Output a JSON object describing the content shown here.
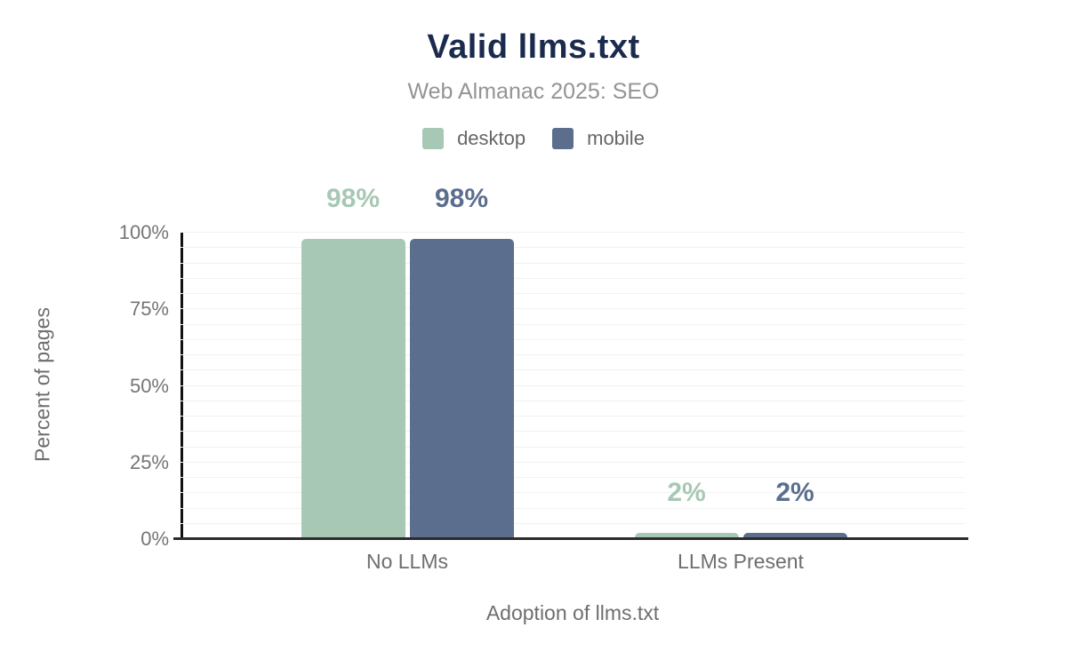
{
  "header": {
    "title": "Valid llms.txt",
    "subtitle": "Web Almanac 2025: SEO"
  },
  "colors": {
    "title_navy": "#1b2b4e",
    "subtitle_gray": "#949494",
    "axis_label_gray": "#6e6e6e",
    "tick_gray": "#757575",
    "gridline": "#f2f2f2",
    "axis_line": "#2b2b2b",
    "desktop_green": "#a7c8b4",
    "mobile_blue": "#5b6e8d"
  },
  "chart_data": {
    "type": "bar",
    "title": "Valid llms.txt",
    "subtitle": "Web Almanac 2025: SEO",
    "categories": [
      "No LLMs",
      "LLMs Present"
    ],
    "series": [
      {
        "name": "desktop",
        "color": "#a7c8b4",
        "values": [
          98,
          2
        ]
      },
      {
        "name": "mobile",
        "color": "#5b6e8d",
        "values": [
          98,
          2
        ]
      }
    ],
    "data_labels": [
      [
        "98%",
        "2%"
      ],
      [
        "98%",
        "2%"
      ]
    ],
    "unit": "%",
    "xlabel": "Adoption of llms.txt",
    "ylabel": "Percent of pages",
    "ylim": [
      0,
      100
    ],
    "yticks": [
      0,
      25,
      50,
      75,
      100
    ],
    "ytick_labels": [
      "0%",
      "25%",
      "50%",
      "75%",
      "100%"
    ],
    "gridline_step": 5,
    "grid": "horizontal",
    "legend_position": "top",
    "legend_entries": [
      "desktop",
      "mobile"
    ]
  }
}
